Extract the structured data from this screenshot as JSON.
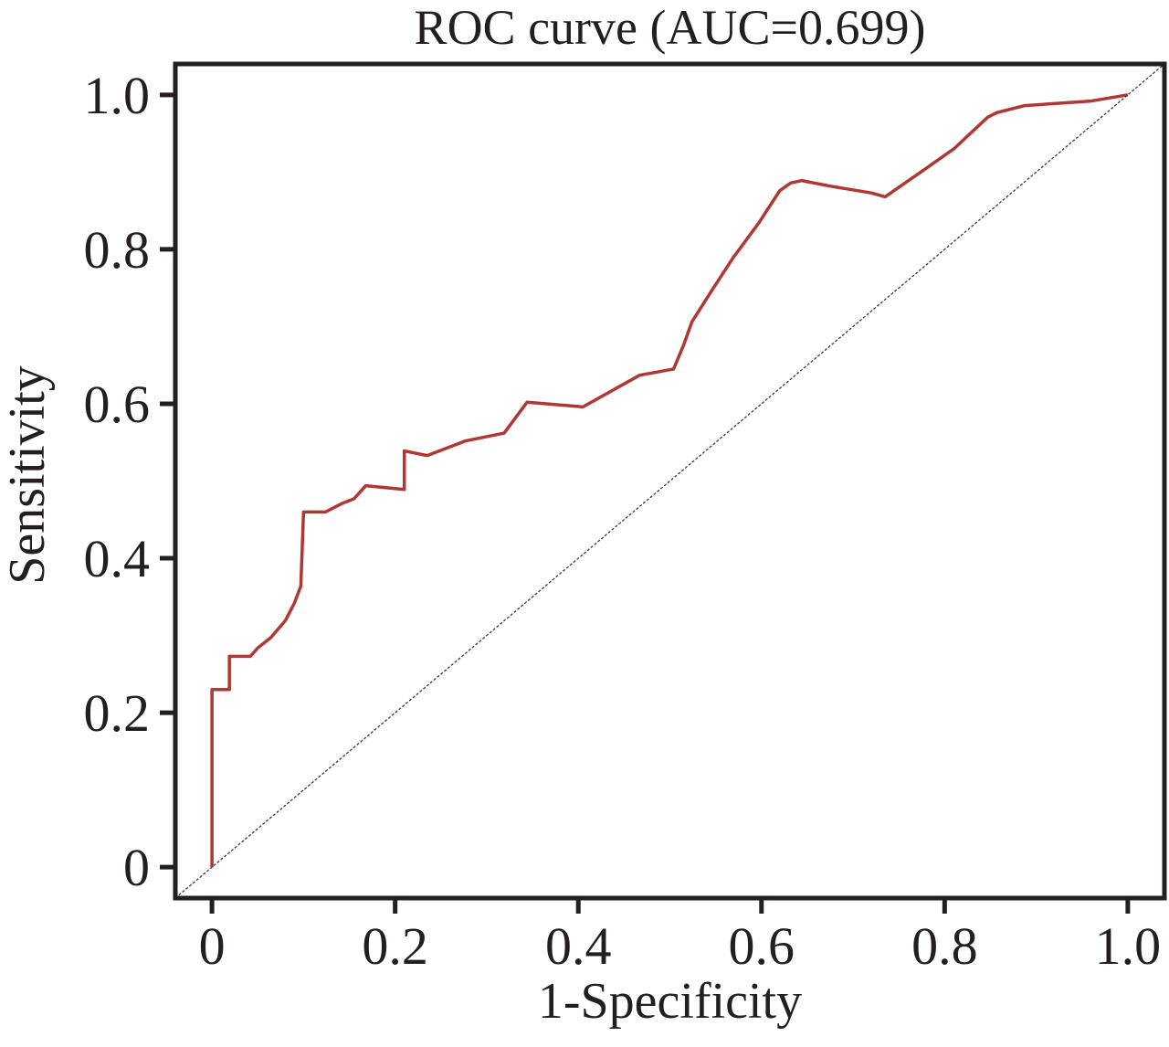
{
  "chart_data": {
    "type": "line",
    "title": "ROC curve (AUC=0.699)",
    "xlabel": "1-Specificity",
    "ylabel": "Sensitivity",
    "auc": 0.699,
    "xlim": [
      -0.04,
      1.04
    ],
    "ylim": [
      -0.04,
      1.04
    ],
    "grid": false,
    "legend": "none",
    "axis_color": "#231f20",
    "x_ticks": [
      0,
      0.2,
      0.4,
      0.6,
      0.8,
      1.0
    ],
    "x_tick_labels": [
      "0",
      "0.2",
      "0.4",
      "0.6",
      "0.8",
      "1.0"
    ],
    "y_ticks": [
      0,
      0.2,
      0.4,
      0.6,
      0.8,
      1.0
    ],
    "y_tick_labels": [
      "0",
      "0.2",
      "0.4",
      "0.6",
      "0.8",
      "1.0"
    ],
    "series": [
      {
        "name": "roc-curve",
        "color": "#b03732",
        "width": 3.5,
        "dash": "",
        "points": [
          [
            0,
            0
          ],
          [
            0,
            0.23
          ],
          [
            0.019,
            0.23
          ],
          [
            0.019,
            0.273
          ],
          [
            0.042,
            0.273
          ],
          [
            0.05,
            0.284
          ],
          [
            0.064,
            0.297
          ],
          [
            0.08,
            0.319
          ],
          [
            0.09,
            0.342
          ],
          [
            0.097,
            0.364
          ],
          [
            0.1,
            0.46
          ],
          [
            0.124,
            0.46
          ],
          [
            0.142,
            0.471
          ],
          [
            0.155,
            0.477
          ],
          [
            0.168,
            0.494
          ],
          [
            0.21,
            0.489
          ],
          [
            0.21,
            0.539
          ],
          [
            0.235,
            0.533
          ],
          [
            0.277,
            0.552
          ],
          [
            0.319,
            0.562
          ],
          [
            0.344,
            0.602
          ],
          [
            0.405,
            0.596
          ],
          [
            0.467,
            0.637
          ],
          [
            0.504,
            0.645
          ],
          [
            0.515,
            0.676
          ],
          [
            0.524,
            0.706
          ],
          [
            0.547,
            0.749
          ],
          [
            0.569,
            0.789
          ],
          [
            0.597,
            0.834
          ],
          [
            0.62,
            0.876
          ],
          [
            0.632,
            0.886
          ],
          [
            0.644,
            0.889
          ],
          [
            0.674,
            0.882
          ],
          [
            0.72,
            0.873
          ],
          [
            0.735,
            0.868
          ],
          [
            0.774,
            0.9
          ],
          [
            0.81,
            0.93
          ],
          [
            0.847,
            0.971
          ],
          [
            0.857,
            0.977
          ],
          [
            0.887,
            0.986
          ],
          [
            0.96,
            0.992
          ],
          [
            1,
            1
          ]
        ]
      },
      {
        "name": "chance-diagonal",
        "color": "#3a3a3a",
        "width": 1.3,
        "dash": "3 2",
        "points": [
          [
            -0.04,
            -0.04
          ],
          [
            1.04,
            1.04
          ]
        ]
      }
    ]
  }
}
